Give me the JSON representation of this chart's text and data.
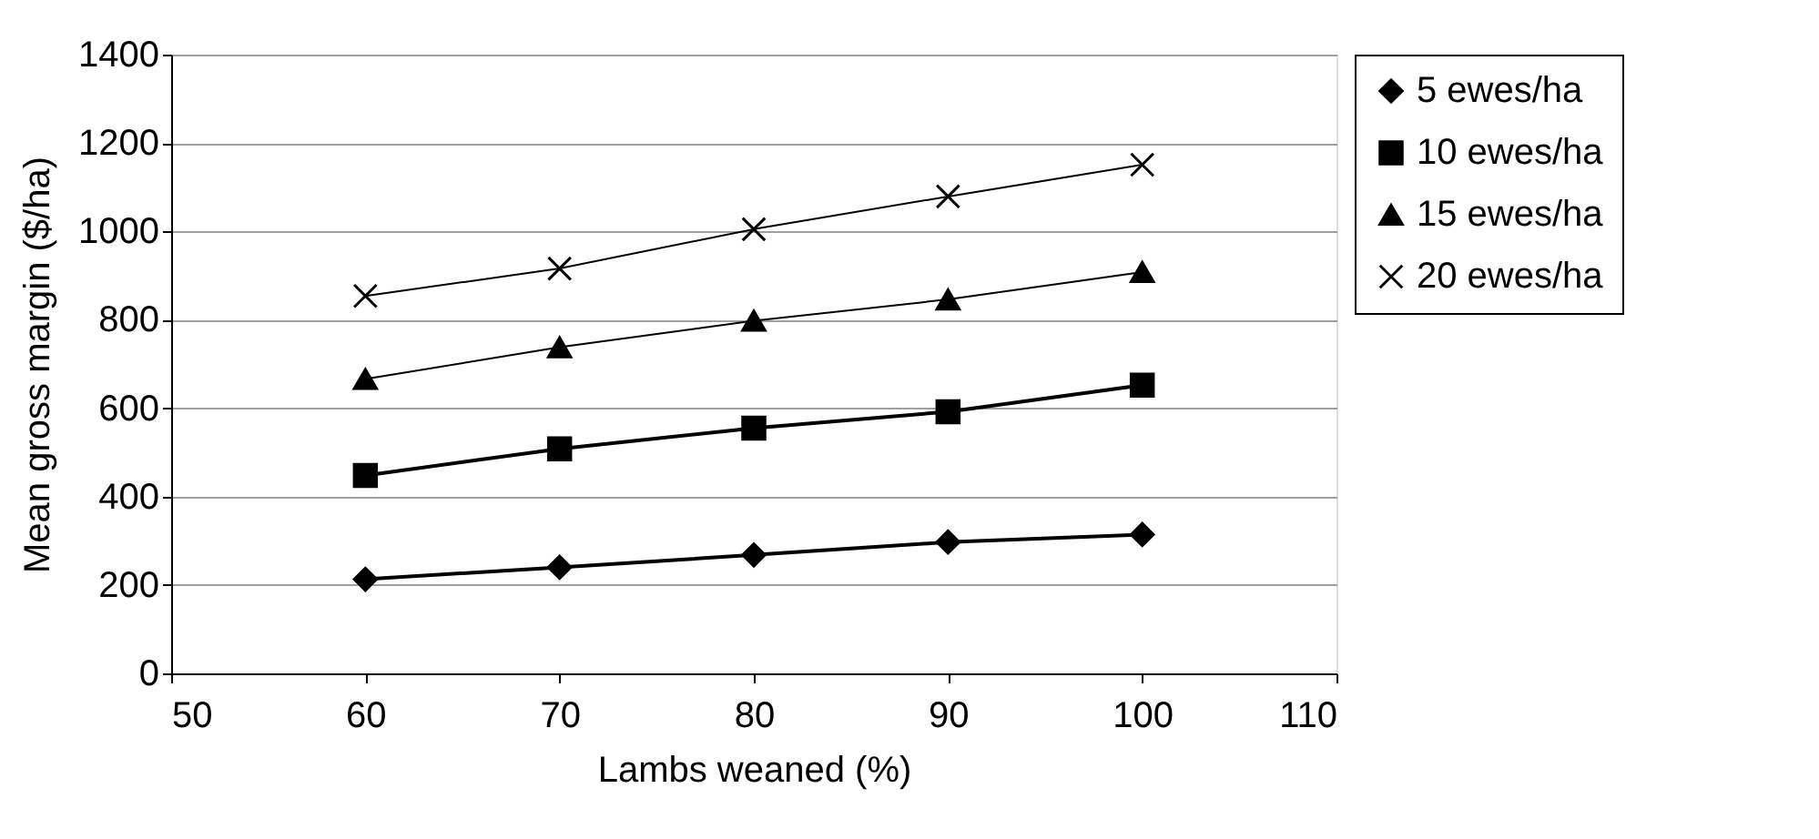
{
  "chart_data": {
    "type": "line",
    "xlabel": "Lambs weaned (%)",
    "ylabel": "Mean gross margin ($/ha)",
    "x": [
      60,
      70,
      80,
      90,
      100
    ],
    "series": [
      {
        "name": "5 ewes/ha",
        "color": "#000000",
        "marker": "diamond",
        "values": [
          213,
          240,
          268,
          297,
          314
        ]
      },
      {
        "name": "10 ewes/ha",
        "color": "#000000",
        "marker": "square",
        "values": [
          448,
          508,
          555,
          592,
          652
        ]
      },
      {
        "name": "15 ewes/ha",
        "color": "#000000",
        "marker": "triangle",
        "values": [
          666,
          738,
          798,
          846,
          908
        ]
      },
      {
        "name": "20 ewes/ha",
        "color": "#000000",
        "marker": "cross",
        "values": [
          854,
          916,
          1005,
          1079,
          1151
        ]
      }
    ],
    "xlim": [
      50,
      110
    ],
    "xticks": [
      50,
      60,
      70,
      80,
      90,
      100,
      110
    ],
    "ylim": [
      0,
      1400
    ],
    "yticks": [
      0,
      200,
      400,
      600,
      800,
      1000,
      1200,
      1400
    ],
    "grid": "y",
    "legend": "right",
    "line_style": "solid"
  }
}
